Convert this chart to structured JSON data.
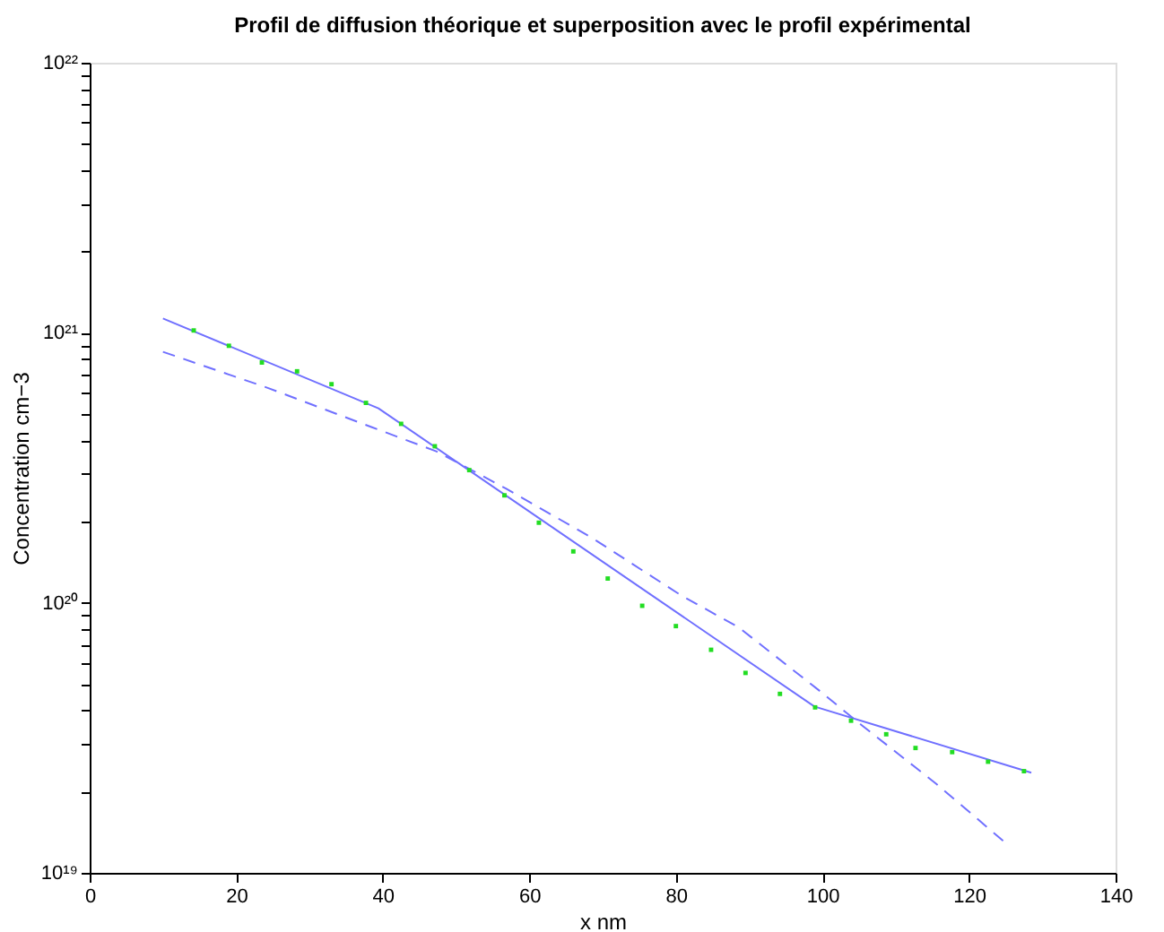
{
  "chart_data": {
    "type": "line",
    "title": "Profil de diffusion théorique et superposition avec le profil expérimental",
    "xlabel": "x nm",
    "ylabel": "Concentration cm−3",
    "log": "y",
    "grid": false,
    "xlim": [
      0,
      140
    ],
    "xticks": [
      0,
      20,
      40,
      60,
      80,
      100,
      120,
      140
    ],
    "ylim": [
      1e+19,
      1e+22
    ],
    "yticks": [
      {
        "value": 1e+19,
        "label": "10¹⁹"
      },
      {
        "value": 2e+19,
        "label": null
      },
      {
        "value": 3e+19,
        "label": null
      },
      {
        "value": 4e+19,
        "label": null
      },
      {
        "value": 5e+19,
        "label": null
      },
      {
        "value": 6e+19,
        "label": null
      },
      {
        "value": 7e+19,
        "label": null
      },
      {
        "value": 8e+19,
        "label": null
      },
      {
        "value": 9e+19,
        "label": null
      },
      {
        "value": 1e+20,
        "label": "10²⁰"
      },
      {
        "value": 2e+20,
        "label": null
      },
      {
        "value": 3e+20,
        "label": null
      },
      {
        "value": 4e+20,
        "label": null
      },
      {
        "value": 5e+20,
        "label": null
      },
      {
        "value": 6e+20,
        "label": null
      },
      {
        "value": 7e+20,
        "label": null
      },
      {
        "value": 8e+20,
        "label": null
      },
      {
        "value": 9e+20,
        "label": null
      },
      {
        "value": 1e+21,
        "label": "10²¹"
      },
      {
        "value": 2e+21,
        "label": null
      },
      {
        "value": 3e+21,
        "label": null
      },
      {
        "value": 4e+21,
        "label": null
      },
      {
        "value": 5e+21,
        "label": null
      },
      {
        "value": 6e+21,
        "label": null
      },
      {
        "value": 7e+21,
        "label": null
      },
      {
        "value": 8e+21,
        "label": null
      },
      {
        "value": 9e+21,
        "label": null
      },
      {
        "value": 1e+22,
        "label": "10²²"
      }
    ],
    "series": [
      {
        "line_style": "solid",
        "marker": "none",
        "color": "#7070ff",
        "x": [
          10,
          39.4,
          98.9,
          128.5
        ],
        "values": [
          1.13e+21,
          5.25e+20,
          4.13e+19,
          2.35e+19
        ]
      },
      {
        "line_style": "dashed",
        "marker": "none",
        "color": "#7070ff",
        "x": [
          10,
          24.3,
          38.6,
          47.3,
          56.8,
          68.7,
          80.6,
          88.6,
          99.7,
          105.2,
          115.5,
          125
        ],
        "values": [
          8.5e+20,
          6.25e+20,
          4.46e+20,
          3.64e+20,
          2.65e+20,
          1.73e+20,
          1.07e+20,
          8.1e+19,
          4.7e+19,
          3.55e+19,
          2.14e+19,
          1.29e+19
        ]
      },
      {
        "type": "scatter",
        "marker": "square",
        "color": "#22dd22",
        "x": [
          14.2,
          19,
          23.5,
          28.3,
          33,
          37.7,
          42.5,
          47.1,
          51.8,
          56.6,
          61.3,
          66,
          70.7,
          75.4,
          80,
          84.8,
          89.5,
          94.2,
          99,
          103.9,
          108.7,
          112.7,
          117.7,
          122.6,
          127.5
        ],
        "values": [
          1.02e+21,
          8.95e+20,
          7.76e+20,
          7.2e+20,
          6.45e+20,
          5.5e+20,
          4.6e+20,
          3.8e+20,
          3.1e+20,
          2.5e+20,
          1.98e+20,
          1.55e+20,
          1.23e+20,
          9.75e+19,
          8.2e+19,
          6.7e+19,
          5.5e+19,
          4.6e+19,
          4.1e+19,
          3.66e+19,
          3.26e+19,
          2.9e+19,
          2.8e+19,
          2.58e+19,
          2.38e+19
        ]
      }
    ]
  }
}
